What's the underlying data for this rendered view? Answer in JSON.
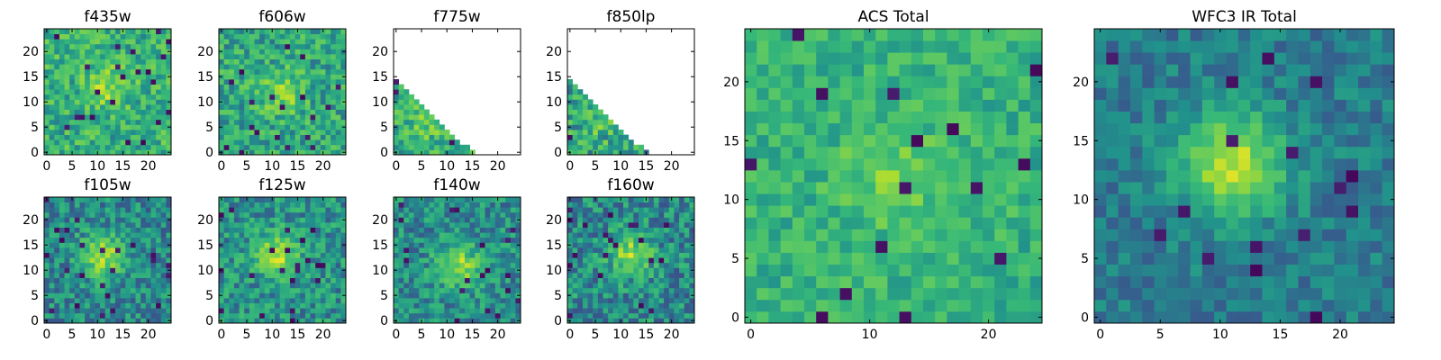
{
  "figure": {
    "colormap": "viridis",
    "colors": {
      "low": "#440154",
      "mid": "#21918c",
      "high": "#fde725",
      "frame": "#000000",
      "background": "#ffffff"
    }
  },
  "chart_data": [
    {
      "type": "heatmap",
      "title": "f435w",
      "xlim": [
        0,
        24
      ],
      "ylim": [
        0,
        24
      ],
      "xticks": [
        0,
        5,
        10,
        15,
        20
      ],
      "yticks": [
        0,
        5,
        10,
        15,
        20
      ],
      "grid": false,
      "mask": "none",
      "center": [
        12,
        13
      ],
      "peak": 0.2,
      "noise": 0.35,
      "base": 0.63,
      "seed": 11
    },
    {
      "type": "heatmap",
      "title": "f606w",
      "xlim": [
        0,
        24
      ],
      "ylim": [
        0,
        24
      ],
      "xticks": [
        0,
        5,
        10,
        15,
        20
      ],
      "yticks": [
        0,
        5,
        10,
        15,
        20
      ],
      "grid": false,
      "mask": "none",
      "center": [
        12,
        12
      ],
      "peak": 0.2,
      "noise": 0.35,
      "base": 0.6,
      "seed": 23
    },
    {
      "type": "heatmap",
      "title": "f775w",
      "xlim": [
        0,
        24
      ],
      "ylim": [
        0,
        24
      ],
      "xticks": [
        0,
        5,
        10,
        15,
        20
      ],
      "yticks": [
        0,
        5,
        10,
        15,
        20
      ],
      "grid": false,
      "mask": "lower-left-triangle",
      "center": [
        6,
        6
      ],
      "peak": 0.1,
      "noise": 0.35,
      "base": 0.62,
      "seed": 37
    },
    {
      "type": "heatmap",
      "title": "f850lp",
      "xlim": [
        0,
        24
      ],
      "ylim": [
        0,
        24
      ],
      "xticks": [
        0,
        5,
        10,
        15,
        20
      ],
      "yticks": [
        0,
        5,
        10,
        15,
        20
      ],
      "grid": false,
      "mask": "lower-left-triangle",
      "center": [
        6,
        6
      ],
      "peak": 0.1,
      "noise": 0.4,
      "base": 0.58,
      "seed": 41
    },
    {
      "type": "heatmap",
      "title": "f105w",
      "xlim": [
        0,
        24
      ],
      "ylim": [
        0,
        24
      ],
      "xticks": [
        0,
        5,
        10,
        15,
        20
      ],
      "yticks": [
        0,
        5,
        10,
        15,
        20
      ],
      "grid": false,
      "mask": "none",
      "center": [
        11,
        13
      ],
      "peak": 0.4,
      "noise": 0.3,
      "base": 0.48,
      "seed": 53
    },
    {
      "type": "heatmap",
      "title": "f125w",
      "xlim": [
        0,
        24
      ],
      "ylim": [
        0,
        24
      ],
      "xticks": [
        0,
        5,
        10,
        15,
        20
      ],
      "yticks": [
        0,
        5,
        10,
        15,
        20
      ],
      "grid": false,
      "mask": "none",
      "center": [
        11,
        13
      ],
      "peak": 0.35,
      "noise": 0.3,
      "base": 0.52,
      "seed": 67
    },
    {
      "type": "heatmap",
      "title": "f140w",
      "xlim": [
        0,
        24
      ],
      "ylim": [
        0,
        24
      ],
      "xticks": [
        0,
        5,
        10,
        15,
        20
      ],
      "yticks": [
        0,
        5,
        10,
        15,
        20
      ],
      "grid": false,
      "mask": "none",
      "center": [
        12,
        11
      ],
      "peak": 0.35,
      "noise": 0.3,
      "base": 0.5,
      "seed": 71
    },
    {
      "type": "heatmap",
      "title": "f160w",
      "xlim": [
        0,
        24
      ],
      "ylim": [
        0,
        24
      ],
      "xticks": [
        0,
        5,
        10,
        15,
        20
      ],
      "yticks": [
        0,
        5,
        10,
        15,
        20
      ],
      "grid": false,
      "mask": "none",
      "center": [
        12,
        13
      ],
      "peak": 0.35,
      "noise": 0.35,
      "base": 0.48,
      "seed": 83
    },
    {
      "type": "heatmap",
      "title": "ACS Total",
      "xlim": [
        0,
        24
      ],
      "ylim": [
        0,
        24
      ],
      "xticks": [
        0,
        10,
        20
      ],
      "yticks": [
        0,
        5,
        10,
        15,
        20
      ],
      "grid": false,
      "mask": "none",
      "center": [
        12,
        12
      ],
      "peak": 0.15,
      "noise": 0.25,
      "base": 0.63,
      "seed": 97
    },
    {
      "type": "heatmap",
      "title": "WFC3 IR Total",
      "xlim": [
        0,
        24
      ],
      "ylim": [
        0,
        24
      ],
      "xticks": [
        0,
        5,
        10,
        15,
        20
      ],
      "yticks": [
        0,
        5,
        10,
        15,
        20
      ],
      "grid": false,
      "mask": "none",
      "center": [
        11,
        13
      ],
      "peak": 0.45,
      "noise": 0.18,
      "base": 0.45,
      "seed": 101
    }
  ]
}
